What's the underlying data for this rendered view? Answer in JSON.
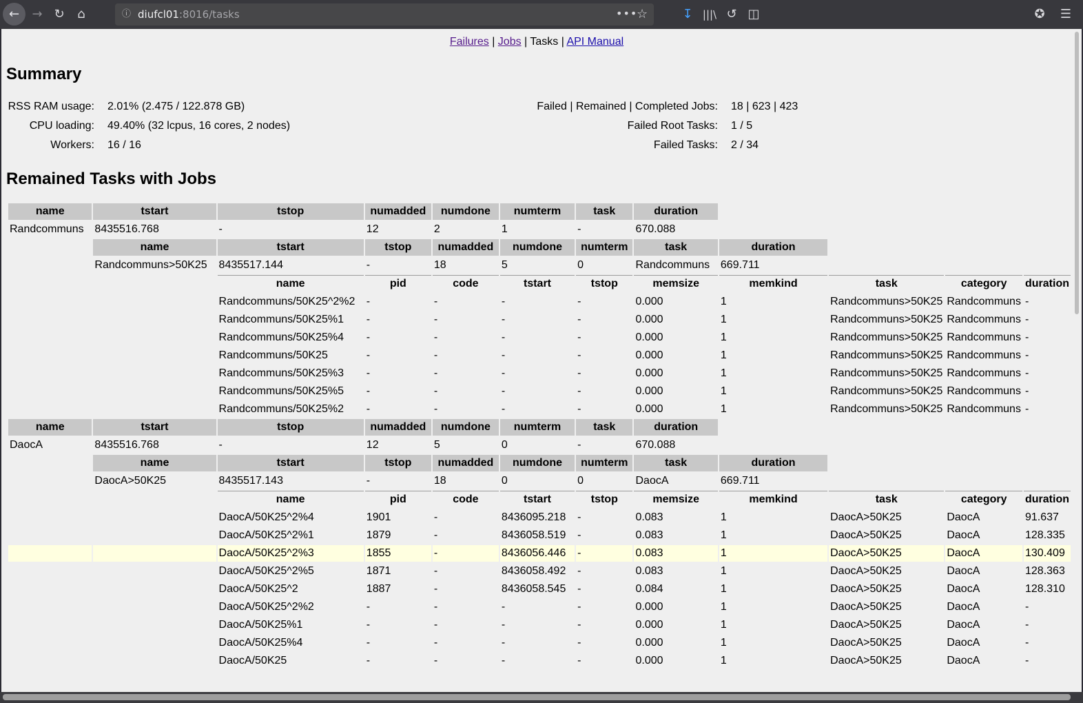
{
  "browser": {
    "url_host": "diufcl01",
    "url_path": ":8016/tasks",
    "icons": [
      "back-icon",
      "forward-icon",
      "reload-icon",
      "home-icon",
      "info-icon",
      "more-icon",
      "bookmark-star-icon",
      "download-icon",
      "library-icon",
      "history-icon",
      "sidebar-icon",
      "pocket-icon",
      "menu-icon"
    ]
  },
  "nav": {
    "failures": "Failures",
    "jobs": "Jobs",
    "tasks": "Tasks",
    "api": "API Manual",
    "sep": " | "
  },
  "summary": {
    "title": "Summary",
    "rss_label": "RSS RAM usage:",
    "rss_value": "2.01% (2.475 / 122.878 GB)",
    "cpu_label": "CPU loading:",
    "cpu_value": "49.40% (32 lcpus, 16 cores, 2 nodes)",
    "workers_label": "Workers:",
    "workers_value": "16 / 16",
    "jobs_label": "Failed | Remained | Completed Jobs:",
    "jobs_value": "18 | 623 | 423",
    "root_label": "Failed Root Tasks:",
    "root_value": "1 / 5",
    "failed_label": "Failed Tasks:",
    "failed_value": "2 / 34"
  },
  "remained_title": "Remained Tasks with Jobs",
  "headers": {
    "root": [
      "name",
      "tstart",
      "tstop",
      "numadded",
      "numdone",
      "numterm",
      "task",
      "duration"
    ],
    "sub": [
      "name",
      "tstart",
      "tstop",
      "numadded",
      "numdone",
      "numterm",
      "task",
      "duration"
    ],
    "job": [
      "name",
      "pid",
      "code",
      "tstart",
      "tstop",
      "memsize",
      "memkind",
      "task",
      "category",
      "duration"
    ]
  },
  "groups": [
    {
      "root": [
        "Randcommuns",
        "8435516.768",
        "-",
        "12",
        "2",
        "1",
        "-",
        "670.088"
      ],
      "sub": [
        "Randcommuns>50K25",
        "8435517.144",
        "-",
        "18",
        "5",
        "0",
        "Randcommuns",
        "669.711"
      ],
      "jobs": [
        [
          "Randcommuns/50K25^2%2",
          "-",
          "-",
          "-",
          "-",
          "0.000",
          "1",
          "Randcommuns>50K25",
          "Randcommuns",
          "-"
        ],
        [
          "Randcommuns/50K25%1",
          "-",
          "-",
          "-",
          "-",
          "0.000",
          "1",
          "Randcommuns>50K25",
          "Randcommuns",
          "-"
        ],
        [
          "Randcommuns/50K25%4",
          "-",
          "-",
          "-",
          "-",
          "0.000",
          "1",
          "Randcommuns>50K25",
          "Randcommuns",
          "-"
        ],
        [
          "Randcommuns/50K25",
          "-",
          "-",
          "-",
          "-",
          "0.000",
          "1",
          "Randcommuns>50K25",
          "Randcommuns",
          "-"
        ],
        [
          "Randcommuns/50K25%3",
          "-",
          "-",
          "-",
          "-",
          "0.000",
          "1",
          "Randcommuns>50K25",
          "Randcommuns",
          "-"
        ],
        [
          "Randcommuns/50K25%5",
          "-",
          "-",
          "-",
          "-",
          "0.000",
          "1",
          "Randcommuns>50K25",
          "Randcommuns",
          "-"
        ],
        [
          "Randcommuns/50K25%2",
          "-",
          "-",
          "-",
          "-",
          "0.000",
          "1",
          "Randcommuns>50K25",
          "Randcommuns",
          "-"
        ]
      ]
    },
    {
      "root": [
        "DaocA",
        "8435516.768",
        "-",
        "12",
        "5",
        "0",
        "-",
        "670.088"
      ],
      "sub": [
        "DaocA>50K25",
        "8435517.143",
        "-",
        "18",
        "0",
        "0",
        "DaocA",
        "669.711"
      ],
      "jobs": [
        [
          "DaocA/50K25^2%4",
          "1901",
          "-",
          "8436095.218",
          "-",
          "0.083",
          "1",
          "DaocA>50K25",
          "DaocA",
          "91.637"
        ],
        [
          "DaocA/50K25^2%1",
          "1879",
          "-",
          "8436058.519",
          "-",
          "0.083",
          "1",
          "DaocA>50K25",
          "DaocA",
          "128.335"
        ],
        [
          "DaocA/50K25^2%3",
          "1855",
          "-",
          "8436056.446",
          "-",
          "0.083",
          "1",
          "DaocA>50K25",
          "DaocA",
          "130.409"
        ],
        [
          "DaocA/50K25^2%5",
          "1871",
          "-",
          "8436058.492",
          "-",
          "0.083",
          "1",
          "DaocA>50K25",
          "DaocA",
          "128.363"
        ],
        [
          "DaocA/50K25^2",
          "1887",
          "-",
          "8436058.545",
          "-",
          "0.084",
          "1",
          "DaocA>50K25",
          "DaocA",
          "128.310"
        ],
        [
          "DaocA/50K25^2%2",
          "-",
          "-",
          "-",
          "-",
          "0.000",
          "1",
          "DaocA>50K25",
          "DaocA",
          "-"
        ],
        [
          "DaocA/50K25%1",
          "-",
          "-",
          "-",
          "-",
          "0.000",
          "1",
          "DaocA>50K25",
          "DaocA",
          "-"
        ],
        [
          "DaocA/50K25%4",
          "-",
          "-",
          "-",
          "-",
          "0.000",
          "1",
          "DaocA>50K25",
          "DaocA",
          "-"
        ],
        [
          "DaocA/50K25",
          "-",
          "-",
          "-",
          "-",
          "0.000",
          "1",
          "DaocA>50K25",
          "DaocA",
          "-"
        ]
      ]
    }
  ],
  "highlight": {
    "group": 1,
    "job": 2,
    "color": "#ffffe0"
  }
}
